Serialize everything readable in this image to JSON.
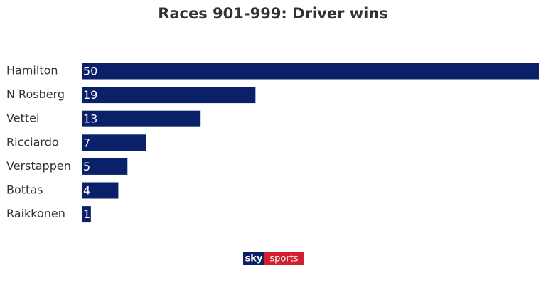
{
  "chart_data": {
    "type": "bar",
    "orientation": "horizontal",
    "title": "Races 901-999: Driver wins",
    "categories": [
      "Hamilton",
      "N Rosberg",
      "Vettel",
      "Ricciardo",
      "Verstappen",
      "Bottas",
      "Raikkonen"
    ],
    "values": [
      50,
      19,
      13,
      7,
      5,
      4,
      1
    ],
    "color": "#0a2068"
  },
  "logo": [
    "sky",
    "sports"
  ]
}
